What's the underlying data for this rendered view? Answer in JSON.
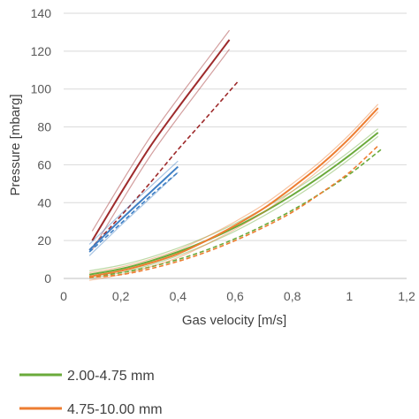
{
  "chart_data": {
    "type": "line",
    "xlabel": "Gas velocity [m/s]",
    "ylabel": "Pressure [mbarg]",
    "xlim": [
      0,
      1.2
    ],
    "ylim": [
      0,
      140
    ],
    "x_ticks": [
      "0",
      "0,2",
      "0,4",
      "0,6",
      "0,8",
      "1",
      "1,2"
    ],
    "y_ticks": [
      "0",
      "20",
      "40",
      "60",
      "80",
      "100",
      "120",
      "140"
    ],
    "grid": "horizontal",
    "legend_position": "bottom",
    "series": [
      {
        "name": "",
        "color": "#9e2a2b",
        "style": "solid-band",
        "x": [
          0.1,
          0.2,
          0.3,
          0.4,
          0.5,
          0.58
        ],
        "y": [
          20,
          45,
          69,
          90,
          110,
          126
        ],
        "band": 5
      },
      {
        "name": "",
        "color": "#9e2a2b",
        "style": "dashed",
        "x": [
          0.09,
          0.2,
          0.3,
          0.4,
          0.5,
          0.61
        ],
        "y": [
          15,
          33,
          50,
          68,
          85,
          104
        ]
      },
      {
        "name": "",
        "color": "#3f7fc4",
        "style": "solid-band",
        "x": [
          0.09,
          0.2,
          0.3,
          0.4
        ],
        "y": [
          15,
          31,
          45,
          59
        ],
        "band": 3
      },
      {
        "name": "",
        "color": "#3f7fc4",
        "style": "dashed",
        "x": [
          0.09,
          0.2,
          0.3,
          0.4
        ],
        "y": [
          14,
          29,
          43,
          56
        ]
      },
      {
        "name": "2.00-4.75 mm",
        "color": "#6aaa3a",
        "style": "solid-band",
        "x": [
          0.09,
          0.2,
          0.3,
          0.4,
          0.5,
          0.6,
          0.7,
          0.8,
          0.9,
          1.0,
          1.1
        ],
        "y": [
          2,
          5,
          9,
          14,
          20,
          27,
          35,
          44,
          54,
          65,
          77
        ],
        "band": 2
      },
      {
        "name": "",
        "color": "#6aaa3a",
        "style": "dashed",
        "x": [
          0.09,
          0.2,
          0.3,
          0.4,
          0.5,
          0.6,
          0.7,
          0.8,
          0.9,
          1.0,
          1.11
        ],
        "y": [
          1,
          3,
          6,
          10,
          15,
          21,
          28,
          36,
          45,
          55,
          68
        ]
      },
      {
        "name": "4.75-10.00 mm",
        "color": "#ed7d31",
        "style": "solid-band",
        "x": [
          0.09,
          0.2,
          0.3,
          0.4,
          0.5,
          0.6,
          0.7,
          0.8,
          0.9,
          1.0,
          1.1
        ],
        "y": [
          1,
          4,
          8,
          13,
          20,
          28,
          37,
          48,
          60,
          74,
          90
        ],
        "band": 2
      },
      {
        "name": "",
        "color": "#ed7d31",
        "style": "dashed",
        "x": [
          0.09,
          0.2,
          0.3,
          0.4,
          0.5,
          0.6,
          0.7,
          0.8,
          0.9,
          1.0,
          1.1
        ],
        "y": [
          0.5,
          2,
          5,
          9,
          14,
          20,
          27,
          35,
          45,
          56,
          70
        ]
      }
    ]
  }
}
